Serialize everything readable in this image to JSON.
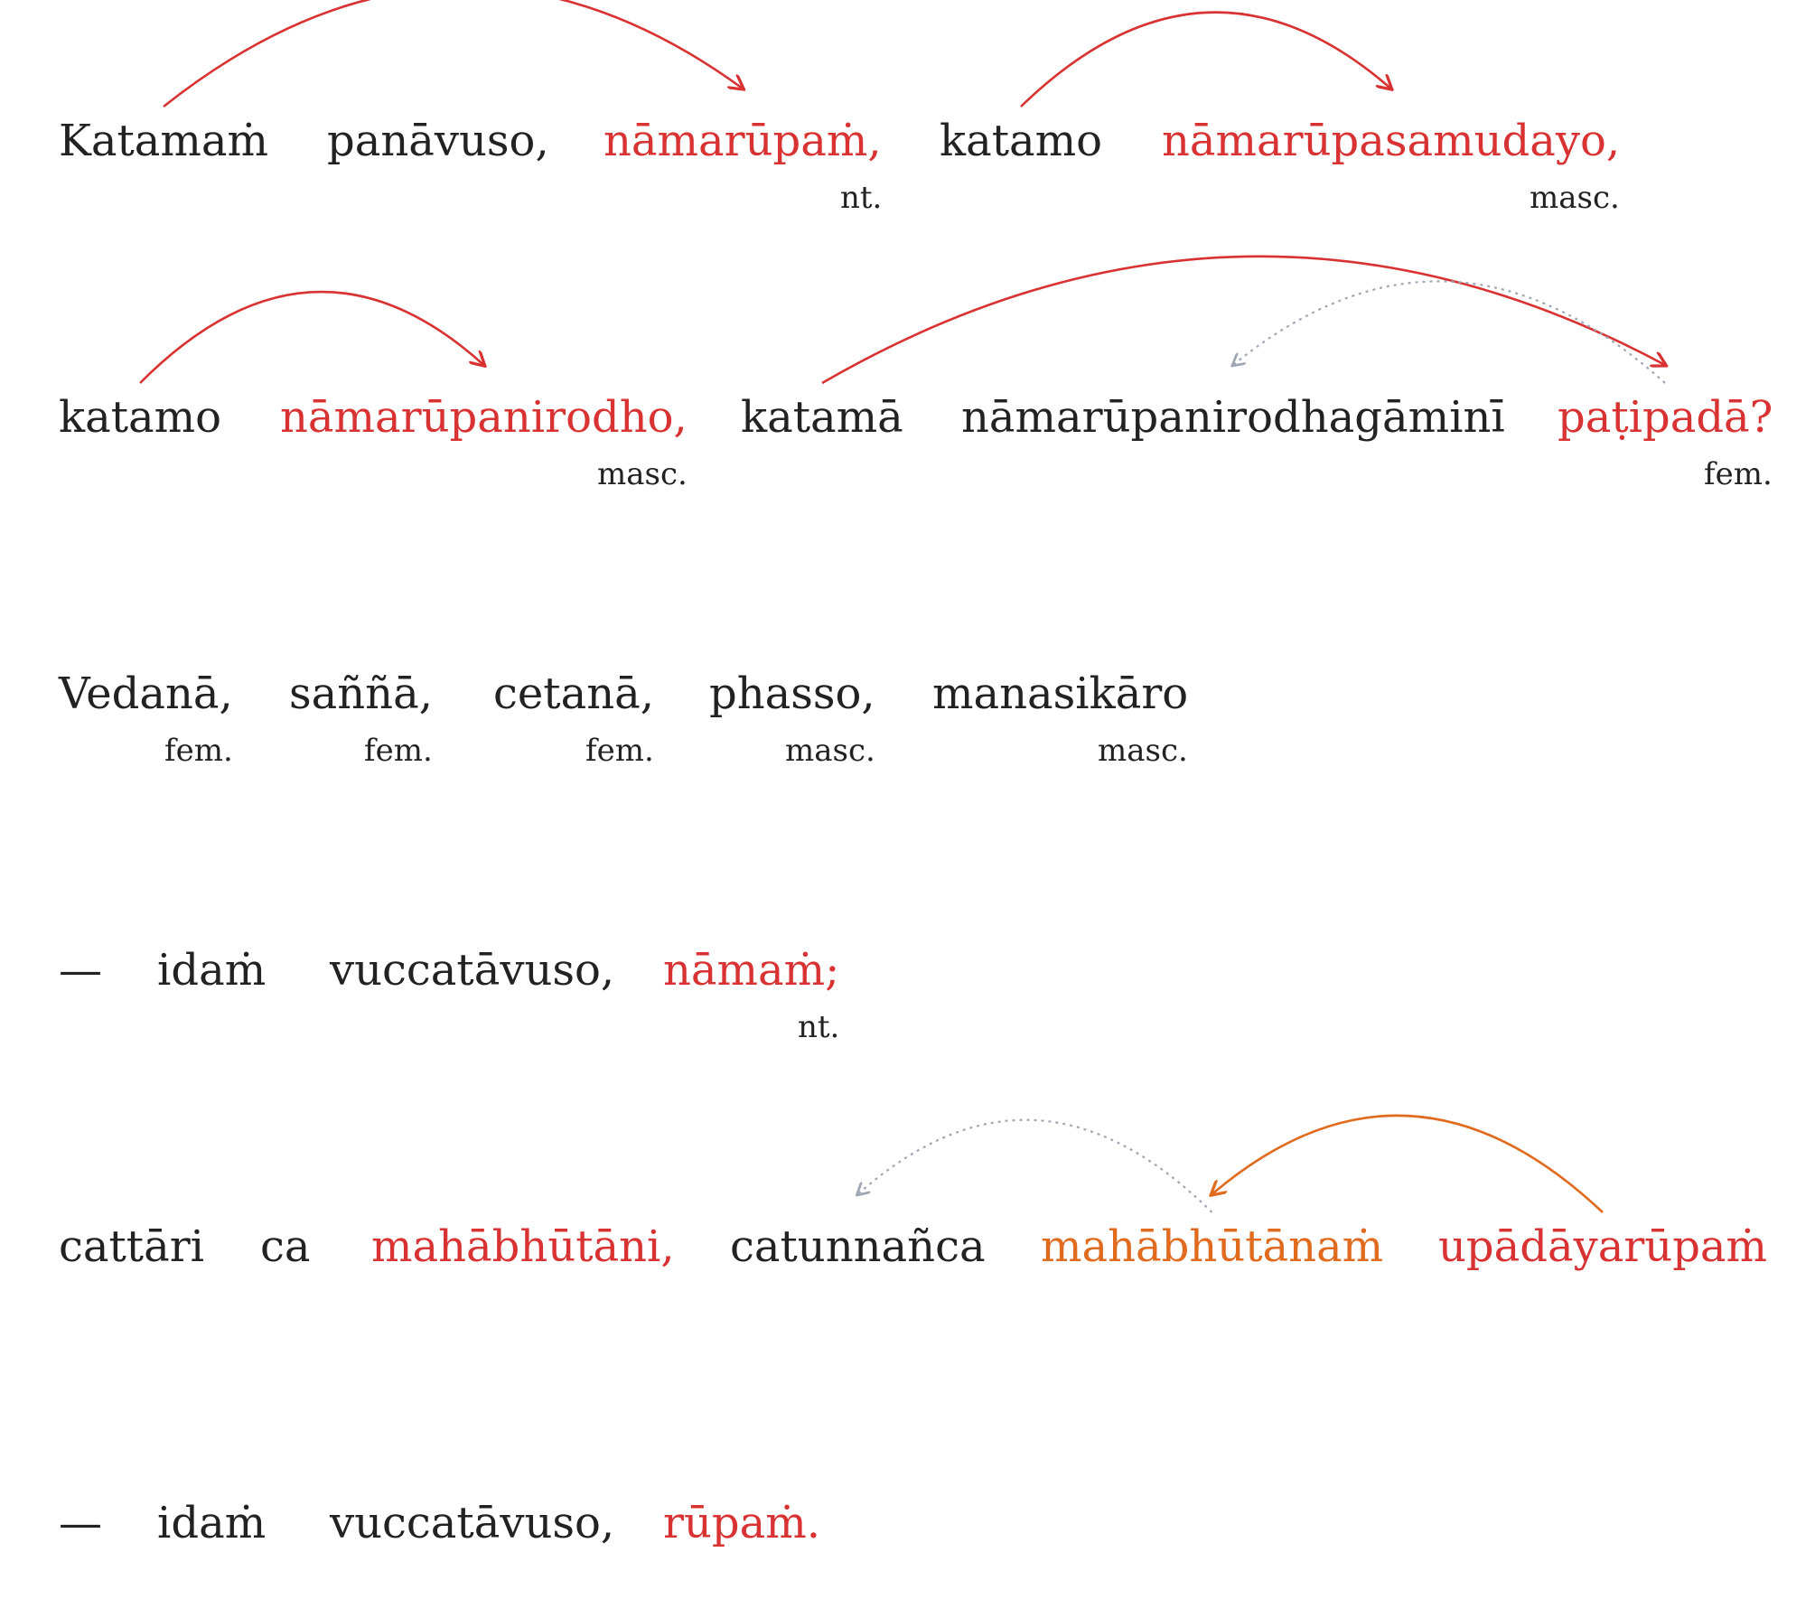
{
  "colors": {
    "text": "#222222",
    "highlight_red": "#d93232",
    "highlight_orange": "#e06a1e",
    "arc_red": "#d93232",
    "arc_orange": "#e06a1e",
    "arc_gray": "#a0a7b4"
  },
  "lines": [
    {
      "words": [
        {
          "text": "Katamaṁ",
          "color": "text"
        },
        {
          "text": "panāvuso,",
          "color": "text"
        },
        {
          "text": "nāmarūpaṁ,",
          "color": "highlight_red",
          "gloss": "nt."
        },
        {
          "text": "katamo",
          "color": "text"
        },
        {
          "text": "nāmarūpasamudayo,",
          "color": "highlight_red",
          "gloss": "masc."
        }
      ],
      "arcs": [
        {
          "from": 0,
          "to": 2,
          "style": "arc_red",
          "dashed": false
        },
        {
          "from": 3,
          "to": 4,
          "style": "arc_red",
          "dashed": false
        }
      ]
    },
    {
      "words": [
        {
          "text": "katamo",
          "color": "text"
        },
        {
          "text": "nāmarūpanirodho,",
          "color": "highlight_red",
          "gloss": "masc."
        },
        {
          "text": "katamā",
          "color": "text"
        },
        {
          "text": "nāmarūpanirodhagāminī",
          "color": "text"
        },
        {
          "text": "paṭipadā?",
          "color": "highlight_red",
          "gloss": "fem."
        }
      ],
      "arcs": [
        {
          "from": 0,
          "to": 1,
          "style": "arc_red",
          "dashed": false
        },
        {
          "from": 2,
          "to": 4,
          "style": "arc_red",
          "dashed": false
        },
        {
          "from": 4,
          "to": 3,
          "style": "arc_gray",
          "dashed": true
        }
      ]
    },
    {
      "words": [
        {
          "text": "Vedanā,",
          "color": "text",
          "gloss": "fem."
        },
        {
          "text": "saññā,",
          "color": "text",
          "gloss": "fem."
        },
        {
          "text": "cetanā,",
          "color": "text",
          "gloss": "fem."
        },
        {
          "text": "phasso,",
          "color": "text",
          "gloss": "masc."
        },
        {
          "text": "manasikāro",
          "color": "text",
          "gloss": "masc."
        }
      ],
      "arcs": []
    },
    {
      "words": [
        {
          "text": "—",
          "color": "text"
        },
        {
          "text": "idaṁ",
          "color": "text"
        },
        {
          "text": "vuccatāvuso,",
          "color": "text"
        },
        {
          "text": "nāmaṁ;",
          "color": "highlight_red",
          "gloss": "nt."
        }
      ],
      "arcs": []
    },
    {
      "words": [
        {
          "text": "cattāri",
          "color": "text"
        },
        {
          "text": "ca",
          "color": "text"
        },
        {
          "text": "mahābhūtāni,",
          "color": "highlight_red"
        },
        {
          "text": "catunnañca",
          "color": "text"
        },
        {
          "text": "mahābhūtānaṁ",
          "color": "highlight_orange"
        },
        {
          "text": "upādāyarūpaṁ",
          "color": "highlight_red"
        }
      ],
      "arcs": [
        {
          "from": 4,
          "to": 3,
          "style": "arc_gray",
          "dashed": true
        },
        {
          "from": 5,
          "to": 4,
          "style": "arc_orange",
          "dashed": false
        }
      ]
    },
    {
      "words": [
        {
          "text": "—",
          "color": "text"
        },
        {
          "text": "idaṁ",
          "color": "text"
        },
        {
          "text": "vuccatāvuso,",
          "color": "text"
        },
        {
          "text": "rūpaṁ.",
          "color": "highlight_red"
        }
      ],
      "arcs": []
    }
  ]
}
